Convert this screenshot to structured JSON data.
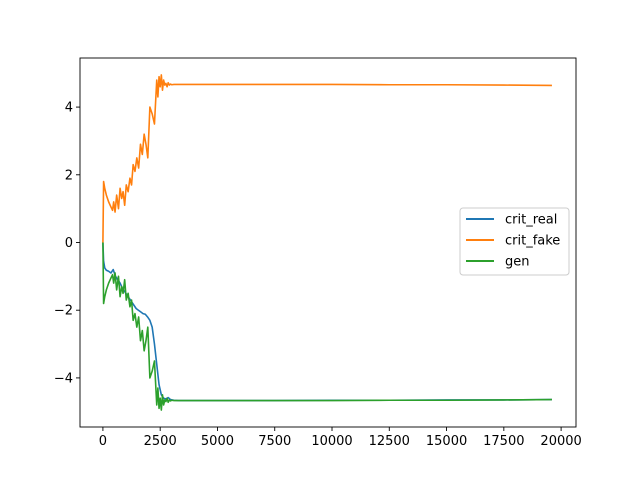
{
  "chart_data": {
    "type": "line",
    "title": "",
    "xlabel": "",
    "ylabel": "",
    "xlim": [
      -1000,
      20650
    ],
    "ylim": [
      -5.45,
      5.45
    ],
    "xticks": [
      0,
      2500,
      5000,
      7500,
      10000,
      12500,
      15000,
      17500,
      20000
    ],
    "yticks": [
      -4,
      -2,
      0,
      2,
      4
    ],
    "xtick_labels": [
      "0",
      "2500",
      "5000",
      "7500",
      "10000",
      "12500",
      "15000",
      "17500",
      "20000"
    ],
    "ytick_labels": [
      "−4",
      "−2",
      "0",
      "2",
      "4"
    ],
    "grid": false,
    "legend_position": "center-right",
    "series": [
      {
        "name": "crit_real",
        "color": "#1f77b4",
        "x": [
          0,
          30,
          80,
          150,
          250,
          350,
          450,
          500,
          550,
          650,
          750,
          850,
          950,
          1050,
          1150,
          1250,
          1350,
          1450,
          1550,
          1650,
          1750,
          1850,
          1950,
          2050,
          2150,
          2250,
          2350,
          2450,
          2550,
          2650,
          2750,
          2850,
          2950,
          3100,
          3300,
          3600,
          4000,
          5000,
          7500,
          10000,
          12500,
          15000,
          17500,
          19600
        ],
        "y": [
          0.0,
          -0.55,
          -0.75,
          -0.82,
          -0.85,
          -0.9,
          -0.8,
          -0.9,
          -1.0,
          -1.1,
          -1.2,
          -1.35,
          -1.45,
          -1.55,
          -1.65,
          -1.75,
          -1.85,
          -1.95,
          -2.0,
          -2.05,
          -2.1,
          -2.12,
          -2.2,
          -2.3,
          -2.5,
          -3.0,
          -3.6,
          -4.2,
          -4.5,
          -4.6,
          -4.62,
          -4.58,
          -4.64,
          -4.66,
          -4.67,
          -4.67,
          -4.67,
          -4.67,
          -4.67,
          -4.66,
          -4.66,
          -4.65,
          -4.65,
          -4.64
        ]
      },
      {
        "name": "crit_fake",
        "color": "#ff7f0e",
        "x": [
          0,
          30,
          80,
          150,
          250,
          350,
          420,
          470,
          530,
          600,
          680,
          750,
          820,
          880,
          950,
          1020,
          1100,
          1180,
          1250,
          1320,
          1400,
          1480,
          1560,
          1640,
          1720,
          1800,
          1880,
          1960,
          2050,
          2150,
          2250,
          2350,
          2400,
          2450,
          2500,
          2550,
          2600,
          2650,
          2700,
          2750,
          2800,
          2850,
          2900,
          2950,
          3000,
          3100,
          3300,
          3600,
          4000,
          5000,
          7500,
          10000,
          12500,
          15000,
          17500,
          19600
        ],
        "y": [
          0.0,
          1.8,
          1.6,
          1.4,
          1.2,
          1.05,
          0.95,
          1.2,
          0.9,
          1.4,
          1.0,
          1.6,
          1.3,
          1.5,
          1.1,
          1.7,
          1.5,
          1.9,
          1.7,
          2.3,
          2.1,
          2.5,
          2.2,
          2.9,
          2.6,
          3.2,
          2.9,
          2.5,
          4.0,
          3.8,
          3.5,
          4.8,
          4.3,
          4.9,
          4.6,
          4.95,
          4.5,
          4.8,
          4.65,
          4.7,
          4.6,
          4.72,
          4.65,
          4.68,
          4.66,
          4.67,
          4.67,
          4.67,
          4.67,
          4.67,
          4.67,
          4.67,
          4.66,
          4.66,
          4.65,
          4.64
        ]
      },
      {
        "name": "gen",
        "color": "#2ca02c",
        "x": [
          0,
          30,
          80,
          150,
          250,
          350,
          420,
          470,
          530,
          600,
          680,
          750,
          820,
          880,
          950,
          1020,
          1100,
          1180,
          1250,
          1320,
          1400,
          1480,
          1560,
          1640,
          1720,
          1800,
          1880,
          1960,
          2050,
          2150,
          2250,
          2350,
          2400,
          2450,
          2500,
          2550,
          2600,
          2650,
          2700,
          2750,
          2800,
          2850,
          2900,
          2950,
          3000,
          3100,
          3300,
          3600,
          4000,
          5000,
          7500,
          10000,
          12500,
          15000,
          17500,
          19600
        ],
        "y": [
          0.0,
          -1.8,
          -1.6,
          -1.4,
          -1.2,
          -1.05,
          -0.95,
          -1.2,
          -0.9,
          -1.4,
          -1.0,
          -1.6,
          -1.3,
          -1.5,
          -1.1,
          -1.7,
          -1.5,
          -1.9,
          -1.7,
          -2.3,
          -2.1,
          -2.5,
          -2.2,
          -2.9,
          -2.6,
          -3.2,
          -2.9,
          -2.5,
          -4.0,
          -3.8,
          -3.5,
          -4.8,
          -4.3,
          -4.9,
          -4.6,
          -4.95,
          -4.5,
          -4.8,
          -4.65,
          -4.7,
          -4.6,
          -4.72,
          -4.65,
          -4.68,
          -4.66,
          -4.67,
          -4.67,
          -4.67,
          -4.67,
          -4.67,
          -4.67,
          -4.67,
          -4.66,
          -4.66,
          -4.65,
          -4.64
        ]
      }
    ]
  }
}
